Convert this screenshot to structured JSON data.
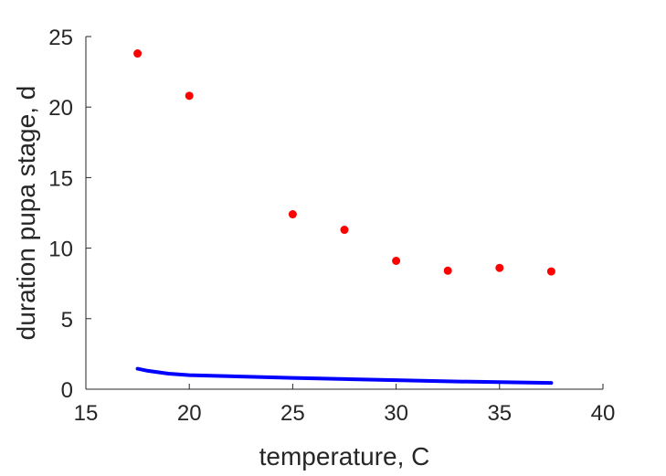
{
  "chart_data": {
    "type": "scatter",
    "title": "",
    "xlabel": "temperature, C",
    "ylabel": "duration pupa stage, d",
    "xlim": [
      15,
      40
    ],
    "ylim": [
      0,
      25
    ],
    "xticks": [
      15,
      20,
      25,
      30,
      35,
      40
    ],
    "yticks": [
      0,
      5,
      10,
      15,
      20,
      25
    ],
    "grid": false,
    "legend": "none",
    "series": [
      {
        "kind": "scatter",
        "color": "#ff0000",
        "x": [
          17.5,
          20,
          25,
          27.5,
          30,
          32.5,
          35,
          37.5
        ],
        "y": [
          23.8,
          20.8,
          12.4,
          11.3,
          9.1,
          8.4,
          8.6,
          8.35
        ]
      },
      {
        "kind": "line",
        "color": "#0000ff",
        "x": [
          17.5,
          18,
          19,
          20,
          22.5,
          25,
          27.5,
          30,
          32.5,
          35,
          37.5
        ],
        "y": [
          1.45,
          1.3,
          1.1,
          1.0,
          0.9,
          0.8,
          0.72,
          0.64,
          0.56,
          0.5,
          0.45
        ]
      }
    ]
  }
}
